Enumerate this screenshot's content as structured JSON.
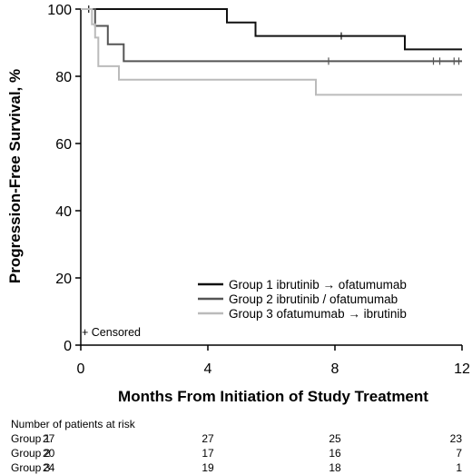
{
  "chart_data": {
    "type": "line",
    "xlabel": "Months From Initiation of Study Treatment",
    "ylabel": "Progression-Free Survival, %",
    "xlim": [
      0,
      12
    ],
    "ylim": [
      0,
      100
    ],
    "xticks": [
      0,
      4,
      8,
      12
    ],
    "yticks": [
      0,
      20,
      40,
      60,
      80,
      100
    ],
    "grid": false,
    "legend_position": "bottom-right",
    "censor_note": "+ Censored",
    "series": [
      {
        "name": "Group 1 ibrutinib → ofatumumab",
        "color": "#111111",
        "steps": [
          [
            0,
            100
          ],
          [
            4.6,
            100
          ],
          [
            4.6,
            96
          ],
          [
            5.5,
            96
          ],
          [
            5.5,
            92
          ],
          [
            10.2,
            92
          ],
          [
            10.2,
            88
          ],
          [
            12,
            88
          ]
        ],
        "censored": [
          [
            0.25,
            100
          ],
          [
            8.2,
            92
          ]
        ]
      },
      {
        "name": "Group 2 ibrutinib / ofatumumab",
        "color": "#555555",
        "steps": [
          [
            0,
            100
          ],
          [
            0.45,
            100
          ],
          [
            0.45,
            95
          ],
          [
            0.85,
            95
          ],
          [
            0.85,
            89.5
          ],
          [
            1.35,
            89.5
          ],
          [
            1.35,
            84.5
          ],
          [
            12,
            84.5
          ]
        ],
        "censored": [
          [
            7.8,
            84.5
          ],
          [
            11.1,
            84.5
          ],
          [
            11.3,
            84.5
          ],
          [
            11.75,
            84.5
          ],
          [
            11.9,
            84.5
          ]
        ]
      },
      {
        "name": "Group 3 ofatumumab → ibrutinib",
        "color": "#bbbbbb",
        "steps": [
          [
            0,
            100
          ],
          [
            0.35,
            100
          ],
          [
            0.35,
            95.5
          ],
          [
            0.45,
            95.5
          ],
          [
            0.45,
            91.5
          ],
          [
            0.55,
            91.5
          ],
          [
            0.55,
            83
          ],
          [
            1.2,
            83
          ],
          [
            1.2,
            79
          ],
          [
            7.4,
            79
          ],
          [
            7.4,
            74.5
          ],
          [
            12,
            74.5
          ]
        ],
        "censored": []
      }
    ]
  },
  "risk_table": {
    "title": "Number of patients at risk",
    "rows": [
      {
        "label": "Group 1",
        "values": [
          "27",
          "27",
          "25",
          "23"
        ]
      },
      {
        "label": "Group 2",
        "values": [
          "20",
          "17",
          "16",
          "7"
        ]
      },
      {
        "label": "Group 3",
        "values": [
          "24",
          "19",
          "18",
          "1"
        ]
      }
    ]
  }
}
